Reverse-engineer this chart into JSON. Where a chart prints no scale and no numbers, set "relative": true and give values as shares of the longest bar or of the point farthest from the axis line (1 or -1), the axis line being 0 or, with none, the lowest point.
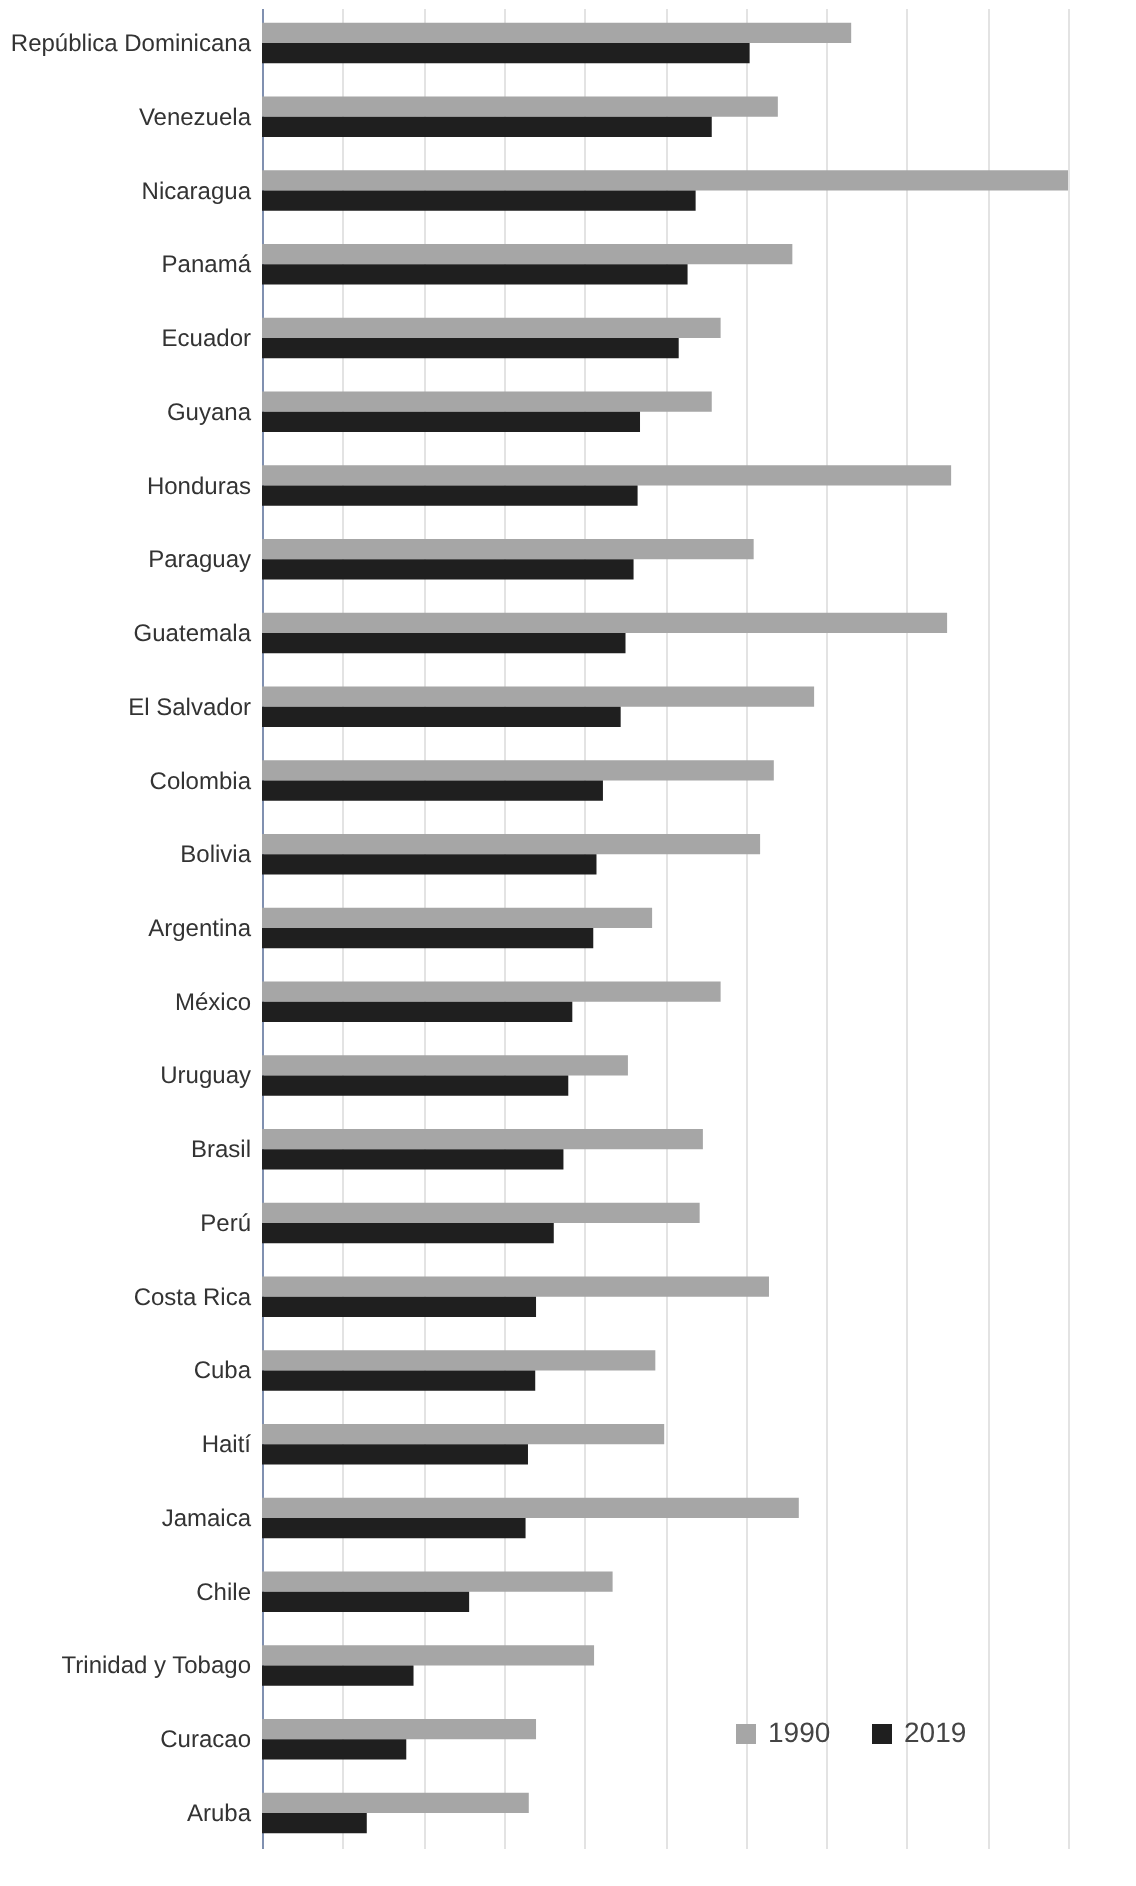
{
  "chart_data": {
    "type": "bar",
    "orientation": "horizontal",
    "relative": true,
    "grid": "x",
    "legend": "bottom right",
    "categories": [
      "República Dominicana",
      "Venezuela",
      "Nicaragua",
      "Panamá",
      "Ecuador",
      "Guyana",
      "Honduras",
      "Paraguay",
      "Guatemala",
      "El Salvador",
      "Colombia",
      "Bolivia",
      "Argentina",
      "México",
      "Uruguay",
      "Brasil",
      "Perú",
      "Costa Rica",
      "Cuba",
      "Haití",
      "Jamaica",
      "Chile",
      "Trinidad y Tobago",
      "Curacao",
      "Aruba"
    ],
    "series": [
      {
        "name": "1990",
        "color": "#a6a6a6",
        "values": [
          0.731,
          0.64,
          1,
          0.658,
          0.569,
          0.558,
          0.855,
          0.61,
          0.85,
          0.685,
          0.635,
          0.618,
          0.484,
          0.569,
          0.454,
          0.547,
          0.543,
          0.629,
          0.488,
          0.499,
          0.666,
          0.435,
          0.412,
          0.34,
          0.331
        ]
      },
      {
        "name": "2019",
        "color": "#1f1f1f",
        "values": [
          0.605,
          0.558,
          0.538,
          0.528,
          0.517,
          0.469,
          0.466,
          0.461,
          0.451,
          0.445,
          0.423,
          0.415,
          0.411,
          0.385,
          0.38,
          0.374,
          0.362,
          0.34,
          0.339,
          0.33,
          0.327,
          0.257,
          0.188,
          0.179,
          0.13
        ]
      }
    ]
  }
}
